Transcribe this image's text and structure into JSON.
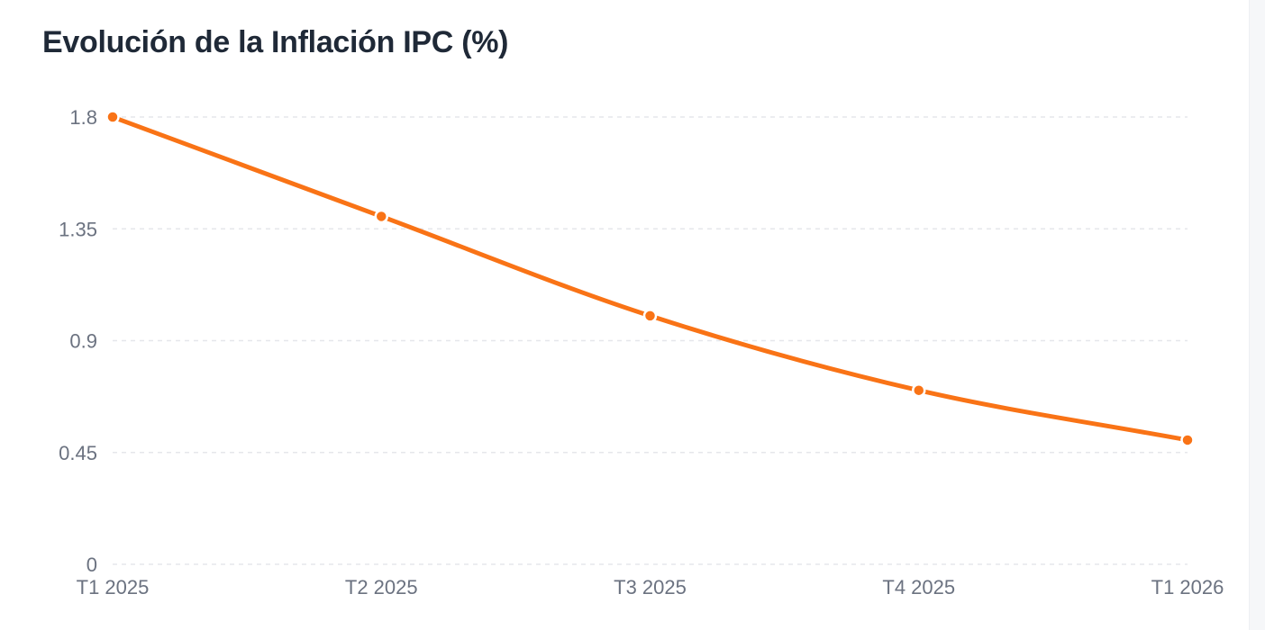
{
  "chart_data": {
    "type": "line",
    "title": "Evolución de la Inflación IPC (%)",
    "xlabel": "",
    "ylabel": "",
    "categories": [
      "T1 2025",
      "T2 2025",
      "T3 2025",
      "T4 2025",
      "T1 2026"
    ],
    "series": [
      {
        "values": [
          1.8,
          1.4,
          1.0,
          0.7,
          0.5
        ]
      }
    ],
    "ylim": [
      0,
      1.8
    ],
    "yticks": [
      0,
      0.45,
      0.9,
      1.35,
      1.8
    ],
    "ytick_labels": [
      "0",
      "0.45",
      "0.9",
      "1.35",
      "1.8"
    ],
    "grid": true,
    "line_color": "#f97316",
    "grid_color": "#e5e7eb",
    "curve": "smooth"
  }
}
